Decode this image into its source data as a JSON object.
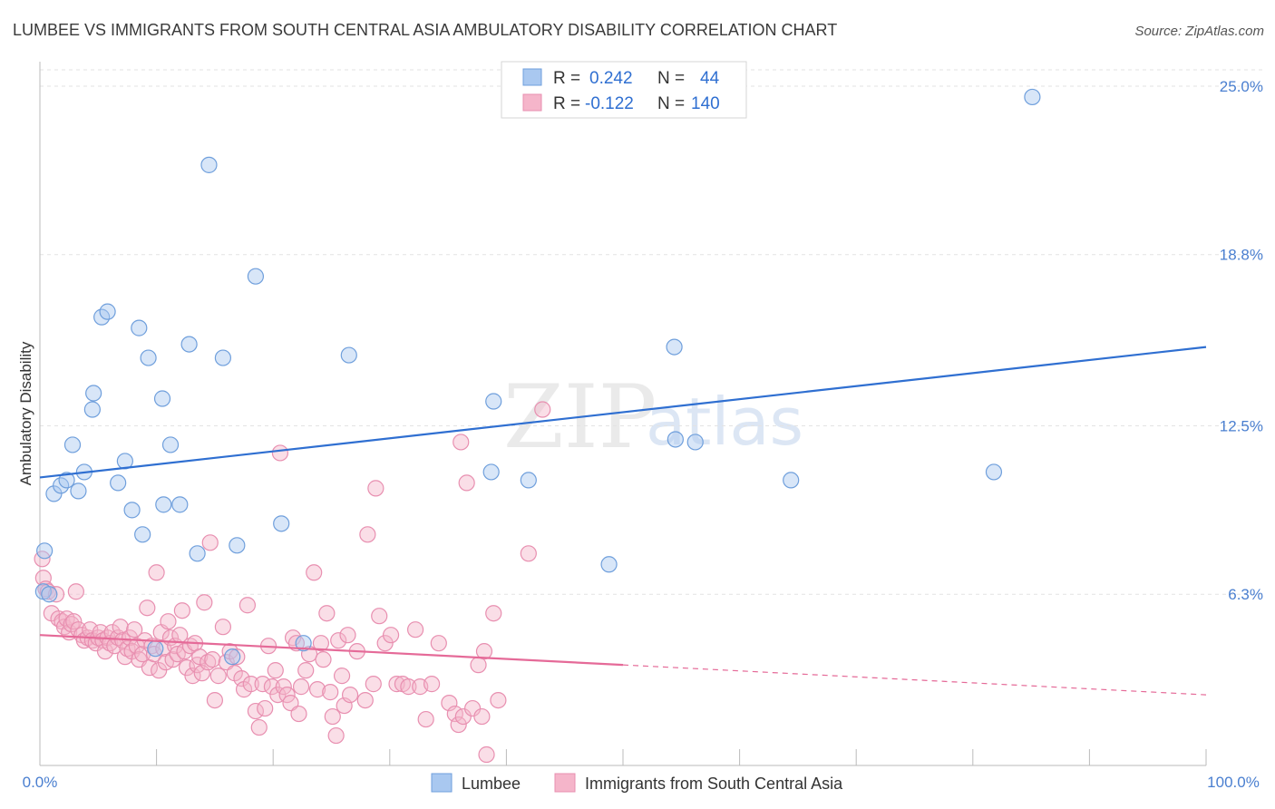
{
  "title": "LUMBEE VS IMMIGRANTS FROM SOUTH CENTRAL ASIA AMBULATORY DISABILITY CORRELATION CHART",
  "source": "Source: ZipAtlas.com",
  "watermark": {
    "zip": "ZIP",
    "atlas": "atlas"
  },
  "colors": {
    "blue": "#2f6fd1",
    "blue_fill": "#a9c8f0",
    "pink": "#e56a98",
    "pink_fill": "#f5b5ca",
    "grid": "#e3e3e3",
    "tick_text": "#4a7fd0"
  },
  "legend_top": {
    "rows": [
      {
        "r_label": "R =",
        "r_value": "0.242",
        "n_label": "N =",
        "n_value": "44"
      },
      {
        "r_label": "R =",
        "r_value": "-0.122",
        "n_label": "N =",
        "n_value": "140"
      }
    ]
  },
  "legend_bottom": [
    "Lumbee",
    "Immigrants from South Central Asia"
  ],
  "chart_data": {
    "type": "scatter",
    "title": "LUMBEE VS IMMIGRANTS FROM SOUTH CENTRAL ASIA AMBULATORY DISABILITY CORRELATION CHART",
    "xlabel": "",
    "ylabel": "Ambulatory Disability",
    "xlim": [
      0,
      100
    ],
    "ylim": [
      0,
      25.9
    ],
    "x_tick_labels": [
      "0.0%",
      "100.0%"
    ],
    "y_ticks": [
      6.3,
      12.5,
      18.8,
      25.0
    ],
    "y_tick_labels": [
      "6.3%",
      "12.5%",
      "18.8%",
      "25.0%"
    ],
    "grid": true,
    "legend_position": "top-center",
    "series": [
      {
        "name": "Lumbee",
        "r": 0.242,
        "n": 44,
        "trend": {
          "x": [
            0,
            100
          ],
          "y": [
            10.6,
            15.4
          ],
          "dashed_from": null
        },
        "points": [
          [
            0.3,
            6.4
          ],
          [
            0.4,
            7.9
          ],
          [
            0.8,
            6.3
          ],
          [
            1.2,
            10.0
          ],
          [
            1.8,
            10.3
          ],
          [
            2.3,
            10.5
          ],
          [
            2.8,
            11.8
          ],
          [
            3.3,
            10.1
          ],
          [
            3.8,
            10.8
          ],
          [
            4.5,
            13.1
          ],
          [
            4.6,
            13.7
          ],
          [
            5.3,
            16.5
          ],
          [
            5.8,
            16.7
          ],
          [
            6.7,
            10.4
          ],
          [
            7.3,
            11.2
          ],
          [
            7.9,
            9.4
          ],
          [
            8.5,
            16.1
          ],
          [
            8.8,
            8.5
          ],
          [
            9.3,
            15.0
          ],
          [
            9.9,
            4.3
          ],
          [
            10.5,
            13.5
          ],
          [
            10.6,
            9.6
          ],
          [
            11.2,
            11.8
          ],
          [
            12.0,
            9.6
          ],
          [
            12.8,
            15.5
          ],
          [
            13.5,
            7.8
          ],
          [
            14.5,
            22.1
          ],
          [
            15.7,
            15.0
          ],
          [
            16.5,
            4.0
          ],
          [
            16.9,
            8.1
          ],
          [
            18.5,
            18.0
          ],
          [
            20.7,
            8.9
          ],
          [
            22.6,
            4.5
          ],
          [
            26.5,
            15.1
          ],
          [
            38.7,
            10.8
          ],
          [
            38.9,
            13.4
          ],
          [
            41.9,
            10.5
          ],
          [
            48.8,
            7.4
          ],
          [
            54.4,
            15.4
          ],
          [
            54.5,
            12.0
          ],
          [
            56.2,
            11.9
          ],
          [
            64.4,
            10.5
          ],
          [
            81.8,
            10.8
          ],
          [
            85.1,
            24.6
          ]
        ]
      },
      {
        "name": "Immigrants from South Central Asia",
        "r": -0.122,
        "n": 140,
        "trend": {
          "x": [
            0,
            100
          ],
          "y": [
            4.8,
            2.6
          ],
          "dashed_from": 50
        },
        "points": [
          [
            0.2,
            7.6
          ],
          [
            0.3,
            6.9
          ],
          [
            0.5,
            6.5
          ],
          [
            0.7,
            6.4
          ],
          [
            1.0,
            5.6
          ],
          [
            1.4,
            6.3
          ],
          [
            1.6,
            5.4
          ],
          [
            1.9,
            5.3
          ],
          [
            2.1,
            5.1
          ],
          [
            2.3,
            5.4
          ],
          [
            2.5,
            4.9
          ],
          [
            2.7,
            5.2
          ],
          [
            2.9,
            5.3
          ],
          [
            3.1,
            6.4
          ],
          [
            3.3,
            5.0
          ],
          [
            3.6,
            4.8
          ],
          [
            3.8,
            4.6
          ],
          [
            4.1,
            4.7
          ],
          [
            4.3,
            5.0
          ],
          [
            4.5,
            4.6
          ],
          [
            4.8,
            4.5
          ],
          [
            5.0,
            4.7
          ],
          [
            5.2,
            4.9
          ],
          [
            5.4,
            4.6
          ],
          [
            5.6,
            4.2
          ],
          [
            5.8,
            4.7
          ],
          [
            6.0,
            4.5
          ],
          [
            6.2,
            4.9
          ],
          [
            6.4,
            4.4
          ],
          [
            6.7,
            4.7
          ],
          [
            6.9,
            5.1
          ],
          [
            7.1,
            4.6
          ],
          [
            7.3,
            4.0
          ],
          [
            7.5,
            4.3
          ],
          [
            7.7,
            4.7
          ],
          [
            7.9,
            4.2
          ],
          [
            8.1,
            5.0
          ],
          [
            8.3,
            4.4
          ],
          [
            8.5,
            3.9
          ],
          [
            8.8,
            4.1
          ],
          [
            9.0,
            4.6
          ],
          [
            9.2,
            5.8
          ],
          [
            9.4,
            3.6
          ],
          [
            9.6,
            4.4
          ],
          [
            9.8,
            4.1
          ],
          [
            10.0,
            7.1
          ],
          [
            10.2,
            3.5
          ],
          [
            10.4,
            4.9
          ],
          [
            10.6,
            4.3
          ],
          [
            10.8,
            3.8
          ],
          [
            11.0,
            5.3
          ],
          [
            11.2,
            4.7
          ],
          [
            11.4,
            3.9
          ],
          [
            11.6,
            4.4
          ],
          [
            11.8,
            4.1
          ],
          [
            12.0,
            4.8
          ],
          [
            12.2,
            5.7
          ],
          [
            12.4,
            4.2
          ],
          [
            12.6,
            3.6
          ],
          [
            12.9,
            4.4
          ],
          [
            13.1,
            3.3
          ],
          [
            13.3,
            4.5
          ],
          [
            13.5,
            3.7
          ],
          [
            13.7,
            4.0
          ],
          [
            13.9,
            3.4
          ],
          [
            14.1,
            6.0
          ],
          [
            14.4,
            3.8
          ],
          [
            14.6,
            8.2
          ],
          [
            14.8,
            3.9
          ],
          [
            15.0,
            2.4
          ],
          [
            15.3,
            3.3
          ],
          [
            15.7,
            5.1
          ],
          [
            16.0,
            3.8
          ],
          [
            16.3,
            4.2
          ],
          [
            16.7,
            3.4
          ],
          [
            16.9,
            4.0
          ],
          [
            17.3,
            3.2
          ],
          [
            17.5,
            2.8
          ],
          [
            17.8,
            5.9
          ],
          [
            18.1,
            3.0
          ],
          [
            18.5,
            2.0
          ],
          [
            18.8,
            1.4
          ],
          [
            19.1,
            3.0
          ],
          [
            19.3,
            2.1
          ],
          [
            19.6,
            4.4
          ],
          [
            19.9,
            2.9
          ],
          [
            20.2,
            3.5
          ],
          [
            20.4,
            2.6
          ],
          [
            20.6,
            11.5
          ],
          [
            20.9,
            2.9
          ],
          [
            21.2,
            2.6
          ],
          [
            21.5,
            2.3
          ],
          [
            21.7,
            4.7
          ],
          [
            22.0,
            4.5
          ],
          [
            22.2,
            1.9
          ],
          [
            22.4,
            2.9
          ],
          [
            22.8,
            3.5
          ],
          [
            23.1,
            4.1
          ],
          [
            23.5,
            7.1
          ],
          [
            23.8,
            2.8
          ],
          [
            24.1,
            4.5
          ],
          [
            24.3,
            3.9
          ],
          [
            24.6,
            5.6
          ],
          [
            24.9,
            2.7
          ],
          [
            25.1,
            1.8
          ],
          [
            25.4,
            1.1
          ],
          [
            25.6,
            4.6
          ],
          [
            25.9,
            3.3
          ],
          [
            26.1,
            2.2
          ],
          [
            26.4,
            4.8
          ],
          [
            26.6,
            2.6
          ],
          [
            27.2,
            4.2
          ],
          [
            27.9,
            2.4
          ],
          [
            28.1,
            8.5
          ],
          [
            28.6,
            3.0
          ],
          [
            28.8,
            10.2
          ],
          [
            29.1,
            5.5
          ],
          [
            29.6,
            4.5
          ],
          [
            30.1,
            4.8
          ],
          [
            30.6,
            3.0
          ],
          [
            31.1,
            3.0
          ],
          [
            31.6,
            2.9
          ],
          [
            32.2,
            5.0
          ],
          [
            32.6,
            2.9
          ],
          [
            33.1,
            1.7
          ],
          [
            33.6,
            3.0
          ],
          [
            34.2,
            4.5
          ],
          [
            35.1,
            2.3
          ],
          [
            35.6,
            1.9
          ],
          [
            35.9,
            1.5
          ],
          [
            36.1,
            11.9
          ],
          [
            36.3,
            1.8
          ],
          [
            36.6,
            10.4
          ],
          [
            37.1,
            2.1
          ],
          [
            37.6,
            3.7
          ],
          [
            37.9,
            1.8
          ],
          [
            38.1,
            4.2
          ],
          [
            38.3,
            0.4
          ],
          [
            38.9,
            5.6
          ],
          [
            39.3,
            2.4
          ],
          [
            41.9,
            7.8
          ],
          [
            43.1,
            13.1
          ]
        ]
      }
    ]
  }
}
